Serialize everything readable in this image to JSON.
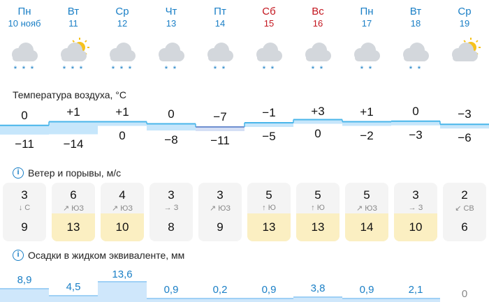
{
  "days": [
    {
      "dow": "Пн",
      "date": "10 нояб",
      "weekend": false,
      "icon": "cloud-snow-icon"
    },
    {
      "dow": "Вт",
      "date": "11",
      "weekend": false,
      "icon": "sun-cloud-snow-icon"
    },
    {
      "dow": "Ср",
      "date": "12",
      "weekend": false,
      "icon": "cloud-snow-icon"
    },
    {
      "dow": "Чт",
      "date": "13",
      "weekend": false,
      "icon": "cloud-snow-icon"
    },
    {
      "dow": "Пт",
      "date": "14",
      "weekend": false,
      "icon": "cloud-snow-icon"
    },
    {
      "dow": "Сб",
      "date": "15",
      "weekend": true,
      "icon": "cloud-snow-icon"
    },
    {
      "dow": "Вс",
      "date": "16",
      "weekend": true,
      "icon": "cloud-snow-icon"
    },
    {
      "dow": "Пн",
      "date": "17",
      "weekend": false,
      "icon": "cloud-snow-icon"
    },
    {
      "dow": "Вт",
      "date": "18",
      "weekend": false,
      "icon": "cloud-snow-icon"
    },
    {
      "dow": "Ср",
      "date": "19",
      "weekend": false,
      "icon": "sun-cloud-icon"
    }
  ],
  "temperature": {
    "title": "Температура воздуха, °С",
    "max": [
      "0",
      "+1",
      "+1",
      "0",
      "−7",
      "−1",
      "+3",
      "+1",
      "0",
      "−3"
    ],
    "min": [
      "−11",
      "−14",
      "0",
      "−8",
      "−11",
      "−5",
      "0",
      "−2",
      "−3",
      "−6"
    ]
  },
  "wind": {
    "title": "Ветер и порывы, м/с",
    "speed": [
      "3",
      "6",
      "4",
      "3",
      "3",
      "5",
      "5",
      "5",
      "3",
      "2"
    ],
    "direction": [
      "↓ С",
      "↗ ЮЗ",
      "↗ ЮЗ",
      "→ З",
      "↗ ЮЗ",
      "↑ Ю",
      "↑ Ю",
      "↗ ЮЗ",
      "→ З",
      "↙ СВ"
    ],
    "gusts": [
      "9",
      "13",
      "10",
      "8",
      "9",
      "13",
      "13",
      "14",
      "10",
      "6"
    ],
    "gust_highlight_color": "#fbefc2"
  },
  "precipitation": {
    "title": "Осадки в жидком эквиваленте, мм",
    "values": [
      "8,9",
      "4,5",
      "13,6",
      "0,9",
      "0,2",
      "0,9",
      "3,8",
      "0,9",
      "2,1",
      "0"
    ]
  },
  "colors": {
    "accent": "#1a7fc6",
    "weekend": "#c3151e",
    "temp_fill": "#c6e6fb",
    "temp_line": "#49b6ea",
    "cold_line": "#6f8fd0",
    "precip_fill": "#cfe7fb"
  }
}
